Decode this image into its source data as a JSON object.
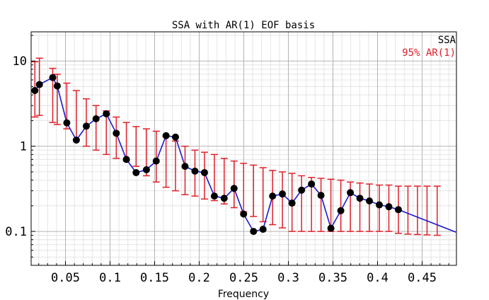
{
  "chart_data": {
    "type": "scatter",
    "title": "SSA with AR(1) EOF basis",
    "xlabel": "Frequency",
    "ylabel": "",
    "xlim": [
      0.0115,
      0.4885
    ],
    "ylim": [
      0.04,
      22
    ],
    "yscale": "log",
    "grid": true,
    "legend_position": "top-right",
    "x_ticks": [
      "0.05",
      "0.1",
      "0.15",
      "0.2",
      "0.25",
      "0.3",
      "0.35",
      "0.4",
      "0.45"
    ],
    "y_ticks": [
      "0.1",
      "1",
      "10"
    ],
    "colors": {
      "ssa_line": "#1a1acc",
      "ssa_marker": "#000000",
      "ar1": "#e0202a"
    },
    "series": [
      {
        "name": "SSA",
        "x": [
          0.0157,
          0.0208,
          0.0357,
          0.0408,
          0.0515,
          0.0622,
          0.0734,
          0.0843,
          0.0958,
          0.107,
          0.1183,
          0.1292,
          0.1408,
          0.1518,
          0.1628,
          0.1734,
          0.1841,
          0.1952,
          0.2059,
          0.217,
          0.228,
          0.2391,
          0.2498,
          0.2609,
          0.2716,
          0.2823,
          0.2933,
          0.3041,
          0.3148,
          0.3259,
          0.3366,
          0.3477,
          0.3588,
          0.3695,
          0.3802,
          0.3909,
          0.402,
          0.4127,
          0.4234,
          0.4341,
          0.4448,
          0.4555,
          0.4669,
          0.488
        ],
        "y": [
          4.5,
          5.3,
          6.4,
          5.1,
          1.88,
          1.18,
          1.72,
          2.1,
          2.4,
          1.42,
          0.7,
          0.49,
          0.53,
          0.67,
          1.33,
          1.28,
          0.58,
          0.51,
          0.49,
          0.26,
          0.245,
          0.32,
          0.16,
          0.1,
          0.106,
          0.26,
          0.275,
          0.215,
          0.305,
          0.36,
          0.265,
          0.109,
          0.175,
          0.285,
          0.245,
          0.228,
          0.205,
          0.195,
          0.18,
          null,
          null,
          null,
          null,
          0.098
        ]
      },
      {
        "name": "95% AR(1)",
        "x": [
          0.0157,
          0.0208,
          0.0357,
          0.0408,
          0.0515,
          0.0622,
          0.0734,
          0.0843,
          0.0958,
          0.107,
          0.1183,
          0.1292,
          0.1408,
          0.1518,
          0.1628,
          0.1734,
          0.1841,
          0.1952,
          0.2059,
          0.217,
          0.228,
          0.2391,
          0.2498,
          0.2609,
          0.2716,
          0.2823,
          0.2933,
          0.3041,
          0.3148,
          0.3259,
          0.3366,
          0.3477,
          0.3588,
          0.3695,
          0.3802,
          0.3909,
          0.402,
          0.4127,
          0.4234,
          0.4341,
          0.4448,
          0.4555,
          0.4669
        ],
        "low": [
          2.2,
          2.3,
          1.9,
          1.8,
          1.6,
          1.2,
          1.0,
          0.9,
          0.8,
          0.72,
          0.67,
          0.58,
          0.45,
          0.38,
          0.33,
          0.3,
          0.27,
          0.26,
          0.24,
          0.23,
          0.21,
          0.19,
          0.17,
          0.15,
          0.13,
          0.12,
          0.11,
          0.1,
          0.1,
          0.1,
          0.1,
          0.1,
          0.1,
          0.1,
          0.1,
          0.1,
          0.1,
          0.1,
          0.095,
          0.093,
          0.092,
          0.091,
          0.09
        ],
        "high": [
          9.8,
          10.8,
          8.2,
          7.0,
          5.5,
          4.5,
          3.6,
          3.0,
          2.6,
          2.2,
          1.9,
          1.7,
          1.6,
          1.5,
          1.3,
          1.15,
          1.0,
          0.9,
          0.85,
          0.8,
          0.72,
          0.67,
          0.63,
          0.6,
          0.56,
          0.52,
          0.5,
          0.48,
          0.45,
          0.43,
          0.42,
          0.41,
          0.4,
          0.38,
          0.37,
          0.36,
          0.35,
          0.35,
          0.34,
          0.34,
          0.34,
          0.34,
          0.34
        ]
      }
    ]
  }
}
